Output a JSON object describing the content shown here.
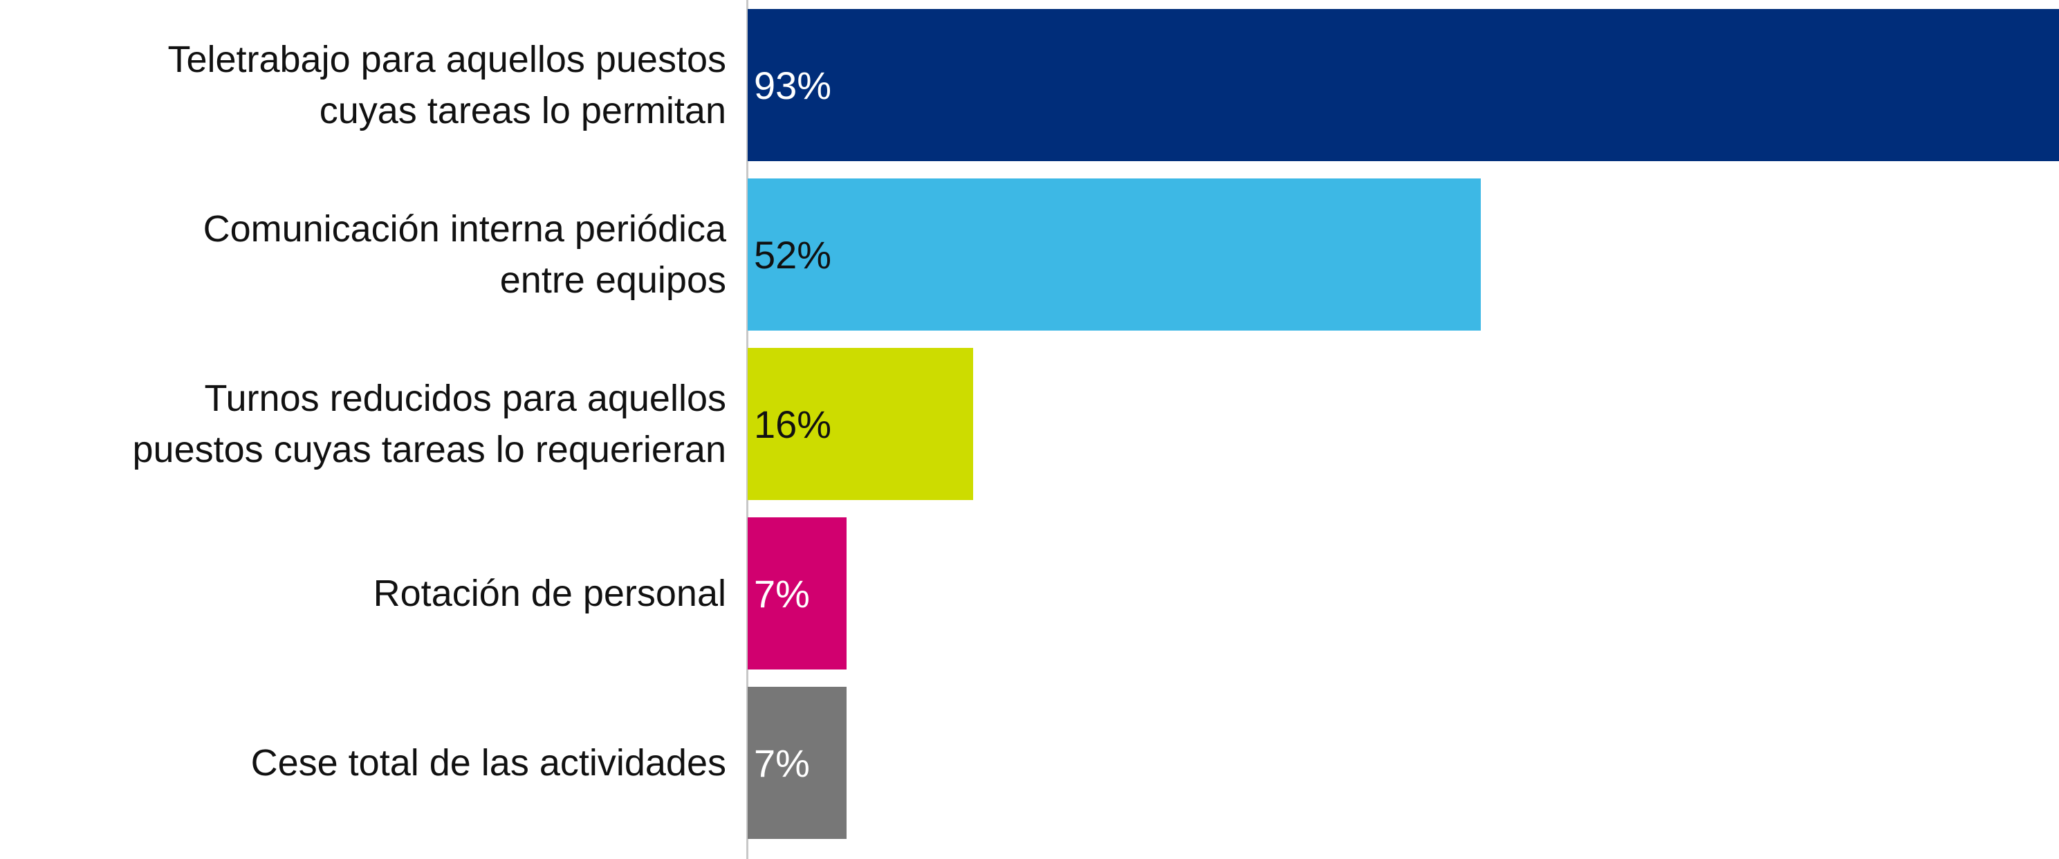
{
  "chart_data": {
    "type": "barh",
    "categories": [
      "Teletrabajo para aquellos puestos\ncuyas tareas lo permitan",
      "Comunicación interna periódica\nentre equipos",
      "Turnos reducidos para aquellos\npuestos cuyas tareas lo requerieran",
      "Rotación de personal",
      "Cese total de las actividades"
    ],
    "values": [
      93,
      52,
      16,
      7,
      7
    ],
    "value_labels": [
      "93%",
      "52%",
      "16%",
      "7%",
      "7%"
    ],
    "colors": [
      "#002d7a",
      "#3db8e5",
      "#cddc00",
      "#d1006f",
      "#777777"
    ],
    "label_colors": [
      "#ffffff",
      "#111111",
      "#111111",
      "#ffffff",
      "#ffffff"
    ],
    "xlim": [
      0,
      100
    ]
  }
}
